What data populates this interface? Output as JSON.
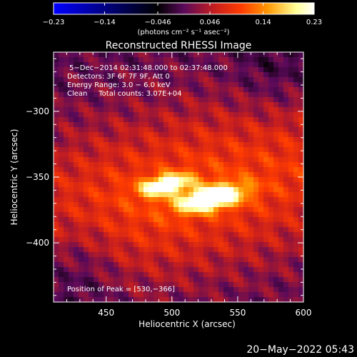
{
  "chart_data": {
    "type": "heatmap",
    "title": "Reconstructed RHESSI Image",
    "xlabel": "Heliocentric X (arcsec)",
    "ylabel": "Heliocentric Y (arcsec)",
    "xlim": [
      410,
      600
    ],
    "ylim": [
      -445,
      -255
    ],
    "x_ticks": [
      450,
      500,
      550,
      600
    ],
    "x_tick_labels": [
      "450",
      "500",
      "550",
      "600"
    ],
    "y_ticks": [
      -300,
      -350,
      -400
    ],
    "y_tick_labels": [
      "−300",
      "−350",
      "−400"
    ],
    "colorbar": {
      "range": [
        -0.23,
        0.23
      ],
      "ticks": [
        -0.23,
        -0.14,
        -0.046,
        0.046,
        0.14,
        0.23
      ],
      "tick_labels": [
        "−0.23",
        "−0.14",
        "−0.046",
        "0.046",
        "0.14",
        "0.23"
      ],
      "unit_label": "(photons cm⁻² s⁻¹ asec⁻²)",
      "colormap": [
        "#0000ff",
        "#000000",
        "#5a0a5a",
        "#c81e1e",
        "#ff3c00",
        "#ff9600",
        "#ffff96",
        "#ffffff"
      ]
    },
    "annotations": [
      "5−Dec−2014 02:31:48.000 to 02:37:48.000",
      "Detectors: 3F 6F 7F 9F, Att 0",
      "Energy Range: 3.0 − 6.0 keV",
      "Clean     Total counts: 3.07E+04"
    ],
    "peak_label": "Position of Peak = [530,−366]",
    "peak": [
      530,
      -366
    ],
    "sources": [
      {
        "x": 495,
        "y": -356,
        "amplitude": 0.19,
        "sx": 13,
        "sy": 5,
        "angle_deg": -12
      },
      {
        "x": 530,
        "y": -366,
        "amplitude": 0.23,
        "sx": 17,
        "sy": 6,
        "angle_deg": -12
      }
    ],
    "background_level": 0.1
  },
  "footer": {
    "timestamp": "20−May−2022 05:43"
  }
}
